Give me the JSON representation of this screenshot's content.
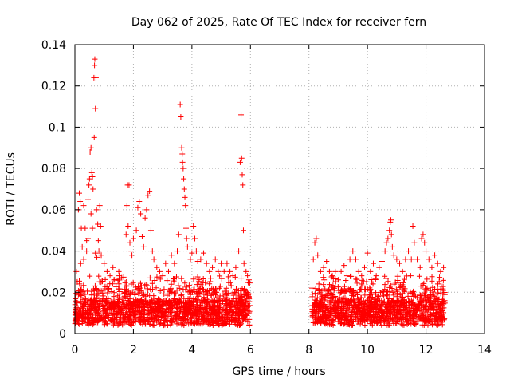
{
  "chart_data": {
    "type": "scatter",
    "title": "Day 062 of 2025, Rate Of TEC Index for receiver fern",
    "xlabel": "GPS time / hours",
    "ylabel": "ROTI / TECUs",
    "xlim": [
      0,
      14
    ],
    "ylim": [
      0,
      0.14
    ],
    "xticks": [
      0,
      2,
      4,
      6,
      8,
      10,
      12,
      14
    ],
    "yticks": [
      0,
      0.02,
      0.04,
      0.06,
      0.08,
      0.1,
      0.12,
      0.14
    ],
    "xtick_labels": [
      "0",
      "2",
      "4",
      "6",
      "8",
      "10",
      "12",
      "14"
    ],
    "ytick_labels": [
      "0",
      "0.02",
      "0.04",
      "0.06",
      "0.08",
      "0.1",
      "0.12",
      "0.14"
    ],
    "grid": true,
    "marker": "plus",
    "color": "#ff0000",
    "points": [
      [
        0.05,
        0.03
      ],
      [
        0.08,
        0.025
      ],
      [
        0.12,
        0.06
      ],
      [
        0.15,
        0.068
      ],
      [
        0.18,
        0.064
      ],
      [
        0.22,
        0.051
      ],
      [
        0.25,
        0.042
      ],
      [
        0.3,
        0.062
      ],
      [
        0.35,
        0.051
      ],
      [
        0.4,
        0.045
      ],
      [
        0.45,
        0.065
      ],
      [
        0.48,
        0.072
      ],
      [
        0.5,
        0.075
      ],
      [
        0.52,
        0.088
      ],
      [
        0.55,
        0.09
      ],
      [
        0.58,
        0.078
      ],
      [
        0.6,
        0.076
      ],
      [
        0.62,
        0.07
      ],
      [
        0.65,
        0.124
      ],
      [
        0.67,
        0.13
      ],
      [
        0.68,
        0.133
      ],
      [
        0.7,
        0.109
      ],
      [
        0.72,
        0.124
      ],
      [
        0.66,
        0.095
      ],
      [
        0.74,
        0.06
      ],
      [
        0.78,
        0.053
      ],
      [
        0.8,
        0.045
      ],
      [
        0.82,
        0.04
      ],
      [
        0.85,
        0.062
      ],
      [
        0.88,
        0.052
      ],
      [
        0.9,
        0.038
      ],
      [
        0.55,
        0.058
      ],
      [
        0.6,
        0.051
      ],
      [
        0.45,
        0.046
      ],
      [
        0.4,
        0.04
      ],
      [
        0.7,
        0.039
      ],
      [
        0.75,
        0.037
      ],
      [
        0.3,
        0.036
      ],
      [
        0.2,
        0.034
      ],
      [
        1.0,
        0.034
      ],
      [
        1.1,
        0.03
      ],
      [
        1.2,
        0.028
      ],
      [
        1.3,
        0.032
      ],
      [
        1.4,
        0.026
      ],
      [
        1.5,
        0.03
      ],
      [
        1.6,
        0.027
      ],
      [
        1.75,
        0.048
      ],
      [
        1.8,
        0.072
      ],
      [
        1.85,
        0.072
      ],
      [
        1.78,
        0.062
      ],
      [
        1.82,
        0.052
      ],
      [
        1.88,
        0.044
      ],
      [
        1.92,
        0.04
      ],
      [
        1.95,
        0.038
      ],
      [
        2.0,
        0.046
      ],
      [
        2.1,
        0.05
      ],
      [
        2.15,
        0.061
      ],
      [
        2.2,
        0.064
      ],
      [
        2.25,
        0.058
      ],
      [
        2.3,
        0.047
      ],
      [
        2.35,
        0.042
      ],
      [
        2.4,
        0.056
      ],
      [
        2.45,
        0.06
      ],
      [
        2.5,
        0.067
      ],
      [
        2.55,
        0.069
      ],
      [
        2.6,
        0.05
      ],
      [
        2.65,
        0.04
      ],
      [
        2.7,
        0.036
      ],
      [
        2.8,
        0.032
      ],
      [
        2.9,
        0.03
      ],
      [
        3.0,
        0.028
      ],
      [
        3.1,
        0.034
      ],
      [
        3.2,
        0.03
      ],
      [
        3.3,
        0.038
      ],
      [
        3.4,
        0.034
      ],
      [
        3.5,
        0.04
      ],
      [
        3.55,
        0.048
      ],
      [
        3.6,
        0.111
      ],
      [
        3.62,
        0.105
      ],
      [
        3.65,
        0.09
      ],
      [
        3.67,
        0.087
      ],
      [
        3.68,
        0.083
      ],
      [
        3.7,
        0.08
      ],
      [
        3.72,
        0.075
      ],
      [
        3.74,
        0.07
      ],
      [
        3.76,
        0.066
      ],
      [
        3.78,
        0.062
      ],
      [
        3.8,
        0.051
      ],
      [
        3.82,
        0.046
      ],
      [
        3.85,
        0.042
      ],
      [
        3.95,
        0.036
      ],
      [
        4.0,
        0.039
      ],
      [
        4.05,
        0.052
      ],
      [
        4.1,
        0.046
      ],
      [
        4.15,
        0.04
      ],
      [
        4.2,
        0.035
      ],
      [
        4.3,
        0.036
      ],
      [
        4.4,
        0.039
      ],
      [
        4.5,
        0.034
      ],
      [
        4.6,
        0.03
      ],
      [
        4.7,
        0.032
      ],
      [
        4.8,
        0.036
      ],
      [
        4.9,
        0.03
      ],
      [
        5.0,
        0.034
      ],
      [
        5.1,
        0.03
      ],
      [
        5.2,
        0.034
      ],
      [
        5.3,
        0.03
      ],
      [
        5.4,
        0.028
      ],
      [
        5.5,
        0.032
      ],
      [
        5.6,
        0.04
      ],
      [
        5.65,
        0.083
      ],
      [
        5.68,
        0.106
      ],
      [
        5.7,
        0.085
      ],
      [
        5.72,
        0.077
      ],
      [
        5.74,
        0.072
      ],
      [
        5.76,
        0.05
      ],
      [
        5.78,
        0.034
      ],
      [
        5.85,
        0.03
      ],
      [
        5.9,
        0.028
      ],
      [
        5.95,
        0.026
      ],
      [
        8.15,
        0.036
      ],
      [
        8.2,
        0.044
      ],
      [
        8.25,
        0.046
      ],
      [
        8.3,
        0.038
      ],
      [
        8.4,
        0.03
      ],
      [
        8.5,
        0.032
      ],
      [
        8.6,
        0.035
      ],
      [
        8.7,
        0.03
      ],
      [
        8.8,
        0.028
      ],
      [
        8.9,
        0.03
      ],
      [
        9.0,
        0.026
      ],
      [
        9.1,
        0.03
      ],
      [
        9.2,
        0.033
      ],
      [
        9.3,
        0.028
      ],
      [
        9.4,
        0.036
      ],
      [
        9.5,
        0.04
      ],
      [
        9.6,
        0.036
      ],
      [
        9.7,
        0.03
      ],
      [
        9.8,
        0.028
      ],
      [
        9.9,
        0.032
      ],
      [
        10.0,
        0.039
      ],
      [
        10.1,
        0.03
      ],
      [
        10.2,
        0.034
      ],
      [
        10.3,
        0.028
      ],
      [
        10.4,
        0.032
      ],
      [
        10.5,
        0.035
      ],
      [
        10.6,
        0.04
      ],
      [
        10.65,
        0.044
      ],
      [
        10.7,
        0.046
      ],
      [
        10.75,
        0.05
      ],
      [
        10.78,
        0.054
      ],
      [
        10.8,
        0.055
      ],
      [
        10.82,
        0.048
      ],
      [
        10.85,
        0.042
      ],
      [
        10.9,
        0.038
      ],
      [
        11.0,
        0.036
      ],
      [
        11.1,
        0.034
      ],
      [
        11.2,
        0.03
      ],
      [
        11.3,
        0.036
      ],
      [
        11.4,
        0.04
      ],
      [
        11.5,
        0.036
      ],
      [
        11.55,
        0.052
      ],
      [
        11.6,
        0.044
      ],
      [
        11.7,
        0.036
      ],
      [
        11.8,
        0.032
      ],
      [
        11.85,
        0.046
      ],
      [
        11.9,
        0.048
      ],
      [
        11.95,
        0.044
      ],
      [
        12.0,
        0.04
      ],
      [
        12.1,
        0.036
      ],
      [
        12.2,
        0.032
      ],
      [
        12.3,
        0.038
      ],
      [
        12.4,
        0.034
      ],
      [
        12.5,
        0.03
      ],
      [
        12.6,
        0.032
      ]
    ]
  }
}
